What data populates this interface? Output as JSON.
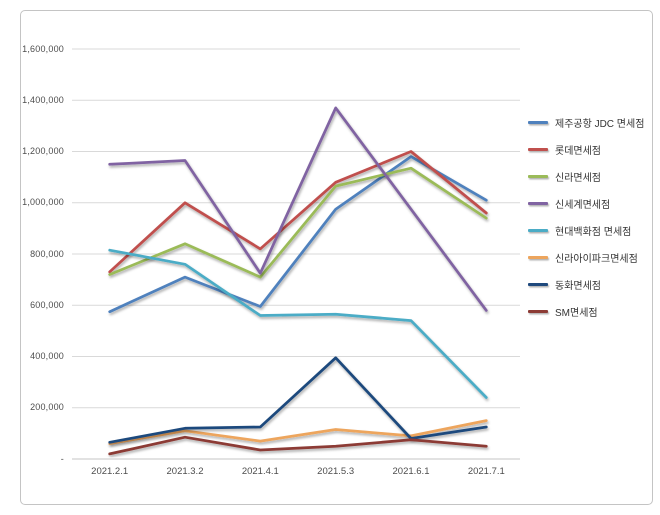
{
  "window": {
    "title": "duty-free-monthly-sales-line-chart"
  },
  "chart_data": {
    "type": "line",
    "title": "",
    "xlabel": "",
    "ylabel": "",
    "x": [
      "2021.2.1",
      "2021.3.2",
      "2021.4.1",
      "2021.5.3",
      "2021.6.1",
      "2021.7.1"
    ],
    "y_ticks": [
      "-",
      "200,000",
      "400,000",
      "600,000",
      "800,000",
      "1,000,000",
      "1,200,000",
      "1,400,000",
      "1,600,000"
    ],
    "ylim": [
      0,
      1600000
    ],
    "grid": true,
    "legend_position": "right",
    "colors": {
      "gridline": "#d9d9d9",
      "axis_line": "#c6c6c6",
      "tick_text": "#4d4d4d",
      "legend_text": "#333333",
      "frame_border": "#c4c4c4",
      "background": "#ffffff"
    },
    "series": [
      {
        "name": "제주공항 JDC 면세점",
        "color": "#4F81BD",
        "values": [
          575000,
          710000,
          595000,
          975000,
          1180000,
          1010000
        ]
      },
      {
        "name": "롯데면세점",
        "color": "#C0504D",
        "values": [
          730000,
          1000000,
          820000,
          1080000,
          1200000,
          960000
        ]
      },
      {
        "name": "신라면세점",
        "color": "#9BBB59",
        "values": [
          720000,
          840000,
          710000,
          1065000,
          1135000,
          940000
        ]
      },
      {
        "name": "신세계면세점",
        "color": "#8064A2",
        "values": [
          1150000,
          1165000,
          725000,
          1370000,
          975000,
          580000
        ]
      },
      {
        "name": "현대백화점 면세점",
        "color": "#4BACC6",
        "values": [
          815000,
          760000,
          560000,
          565000,
          540000,
          240000
        ]
      },
      {
        "name": "신라아이파크면세점",
        "color": "#EDA55D",
        "values": [
          60000,
          110000,
          70000,
          115000,
          90000,
          150000
        ]
      },
      {
        "name": "동화면세점",
        "color": "#1F497D",
        "values": [
          65000,
          120000,
          125000,
          395000,
          80000,
          125000
        ]
      },
      {
        "name": "SM면세점",
        "color": "#8C3B35",
        "values": [
          20000,
          85000,
          35000,
          50000,
          75000,
          50000
        ]
      }
    ]
  }
}
